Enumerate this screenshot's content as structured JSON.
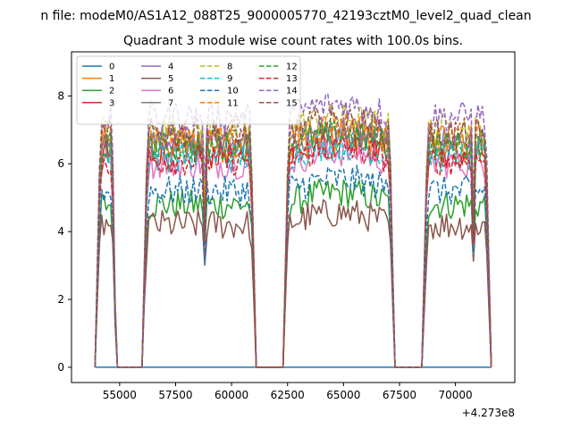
{
  "figure": {
    "suptitle": "n file: modeM0/AS1A12_088T25_9000005770_42193cztM0_level2_quad_clean",
    "title": "Quadrant 3 module wise count rates with 100.0s bins.",
    "x_offset_label": "+4.273e8"
  },
  "chart_data": {
    "type": "line",
    "suptitle": "n file: modeM0/AS1A12_088T25_9000005770_42193cztM0_level2_quad_clean",
    "title": "Quadrant 3 module wise count rates with 100.0s bins.",
    "xlabel": "",
    "ylabel": "",
    "x_offset": "+4.273e8",
    "xlim": [
      52850,
      72650
    ],
    "ylim": [
      -0.45,
      9.3
    ],
    "xticks": [
      55000,
      57500,
      60000,
      62500,
      65000,
      67500,
      70000
    ],
    "xtick_labels": [
      "55000",
      "57500",
      "60000",
      "62500",
      "65000",
      "67500",
      "70000"
    ],
    "yticks": [
      0,
      2,
      4,
      6,
      8
    ],
    "ytick_labels": [
      "0",
      "2",
      "4",
      "6",
      "8"
    ],
    "grid": false,
    "legend_position": "upper-left",
    "legend_columns": 4,
    "x_range": [
      53900,
      71600
    ],
    "bin_size": 100,
    "good_time_intervals": [
      [
        53900,
        54900
      ],
      [
        56000,
        61100
      ],
      [
        62300,
        67300
      ],
      [
        68500,
        71600
      ]
    ],
    "dropouts": [
      54800,
      58800,
      70800
    ],
    "series": [
      {
        "name": "0",
        "color": "#1f77b4",
        "linestyle": "solid",
        "level": 0.0
      },
      {
        "name": "1",
        "color": "#ff7f0e",
        "linestyle": "solid",
        "level": 6.4
      },
      {
        "name": "2",
        "color": "#2ca02c",
        "linestyle": "solid",
        "level": 4.8
      },
      {
        "name": "3",
        "color": "#d62728",
        "linestyle": "solid",
        "level": 6.3
      },
      {
        "name": "4",
        "color": "#9467bd",
        "linestyle": "solid",
        "level": 6.7
      },
      {
        "name": "5",
        "color": "#8c564b",
        "linestyle": "solid",
        "level": 4.2
      },
      {
        "name": "6",
        "color": "#e377c2",
        "linestyle": "solid",
        "level": 6.0
      },
      {
        "name": "7",
        "color": "#7f7f7f",
        "linestyle": "solid",
        "level": 6.6
      },
      {
        "name": "8",
        "color": "#bcbd22",
        "linestyle": "dashed",
        "level": 7.0
      },
      {
        "name": "9",
        "color": "#17becf",
        "linestyle": "dashed",
        "level": 6.2
      },
      {
        "name": "10",
        "color": "#1f77b4",
        "linestyle": "dashed",
        "level": 5.2
      },
      {
        "name": "11",
        "color": "#ff7f0e",
        "linestyle": "dashed",
        "level": 6.8
      },
      {
        "name": "12",
        "color": "#2ca02c",
        "linestyle": "dashed",
        "level": 6.5
      },
      {
        "name": "13",
        "color": "#d62728",
        "linestyle": "dashed",
        "level": 6.1
      },
      {
        "name": "14",
        "color": "#9467bd",
        "linestyle": "dashed",
        "level": 7.4
      },
      {
        "name": "15",
        "color": "#8c564b",
        "linestyle": "dashed",
        "level": 6.9
      }
    ]
  }
}
